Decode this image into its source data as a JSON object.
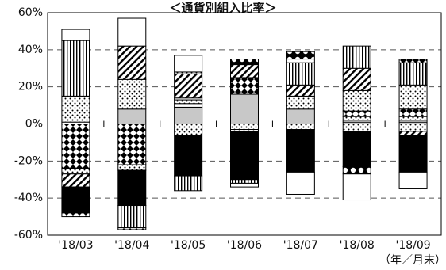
{
  "chart_data": {
    "type": "bar",
    "stacked": true,
    "title": "＜通貨別組入比率＞",
    "xlabel": "（年／月末）",
    "ylabel": "",
    "ylim": [
      -60,
      60
    ],
    "yticks": [
      -60,
      -40,
      -20,
      0,
      20,
      40,
      60
    ],
    "ytick_labels": [
      "-60%",
      "-40%",
      "-20%",
      "0%",
      "20%",
      "40%",
      "60%"
    ],
    "grid": "horizontal dashed",
    "legend": "none",
    "categories": [
      "'18/03",
      "'18/04",
      "'18/05",
      "'18/06",
      "'18/07",
      "'18/08",
      "'18/09"
    ],
    "positive_stacks": [
      [
        {
          "pattern": "white",
          "value": 1
        },
        {
          "pattern": "dots",
          "value": 14
        },
        {
          "pattern": "vlines",
          "value": 30
        },
        {
          "pattern": "white",
          "value": 6
        }
      ],
      [
        {
          "pattern": "gray",
          "value": 8
        },
        {
          "pattern": "dots",
          "value": 16
        },
        {
          "pattern": "diag",
          "value": 18
        },
        {
          "pattern": "white",
          "value": 15
        }
      ],
      [
        {
          "pattern": "gray",
          "value": 9
        },
        {
          "pattern": "white",
          "value": 2
        },
        {
          "pattern": "dots",
          "value": 2
        },
        {
          "pattern": "white",
          "value": 1
        },
        {
          "pattern": "diag",
          "value": 13
        },
        {
          "pattern": "dots",
          "value": 1
        },
        {
          "pattern": "white",
          "value": 9
        }
      ],
      [
        {
          "pattern": "gray",
          "value": 16
        },
        {
          "pattern": "diamonds",
          "value": 9
        },
        {
          "pattern": "diag",
          "value": 7
        },
        {
          "pattern": "circles",
          "value": 3
        }
      ],
      [
        {
          "pattern": "gray",
          "value": 8
        },
        {
          "pattern": "dots",
          "value": 7
        },
        {
          "pattern": "diag",
          "value": 6
        },
        {
          "pattern": "vlines",
          "value": 12
        },
        {
          "pattern": "white",
          "value": 2
        },
        {
          "pattern": "circles",
          "value": 4
        }
      ],
      [
        {
          "pattern": "gray",
          "value": 1
        },
        {
          "pattern": "white",
          "value": 1
        },
        {
          "pattern": "dots",
          "value": 2
        },
        {
          "pattern": "diamonds",
          "value": 3
        },
        {
          "pattern": "dots",
          "value": 11
        },
        {
          "pattern": "diag",
          "value": 12
        },
        {
          "pattern": "vlines",
          "value": 12
        }
      ],
      [
        {
          "pattern": "gray",
          "value": 1
        },
        {
          "pattern": "white",
          "value": 1
        },
        {
          "pattern": "dots",
          "value": 2
        },
        {
          "pattern": "diamonds",
          "value": 4
        },
        {
          "pattern": "dots",
          "value": 13
        },
        {
          "pattern": "vlines",
          "value": 12
        },
        {
          "pattern": "diamonds",
          "value": 2
        }
      ]
    ],
    "negative_stacks": [
      [
        {
          "pattern": "diamonds",
          "value": 24
        },
        {
          "pattern": "dots",
          "value": 3
        },
        {
          "pattern": "diag",
          "value": 7
        },
        {
          "pattern": "black",
          "value": 14
        },
        {
          "pattern": "diamonds",
          "value": 2
        }
      ],
      [
        {
          "pattern": "diamonds",
          "value": 22
        },
        {
          "pattern": "dots",
          "value": 3
        },
        {
          "pattern": "black",
          "value": 19
        },
        {
          "pattern": "vlines",
          "value": 12
        },
        {
          "pattern": "diamonds",
          "value": 1
        }
      ],
      [
        {
          "pattern": "dots",
          "value": 6
        },
        {
          "pattern": "black",
          "value": 22
        },
        {
          "pattern": "vlines",
          "value": 8
        }
      ],
      [
        {
          "pattern": "dots",
          "value": 3
        },
        {
          "pattern": "dots",
          "value": 1
        },
        {
          "pattern": "black",
          "value": 26
        },
        {
          "pattern": "vlines",
          "value": 2
        },
        {
          "pattern": "white",
          "value": 2
        }
      ],
      [
        {
          "pattern": "dots",
          "value": 3
        },
        {
          "pattern": "black",
          "value": 23
        },
        {
          "pattern": "white",
          "value": 12
        }
      ],
      [
        {
          "pattern": "dots",
          "value": 4
        },
        {
          "pattern": "black",
          "value": 19
        },
        {
          "pattern": "circles",
          "value": 4
        },
        {
          "pattern": "white",
          "value": 14
        }
      ],
      [
        {
          "pattern": "dots",
          "value": 4
        },
        {
          "pattern": "diag",
          "value": 2
        },
        {
          "pattern": "black",
          "value": 20
        },
        {
          "pattern": "white",
          "value": 9
        }
      ]
    ]
  }
}
